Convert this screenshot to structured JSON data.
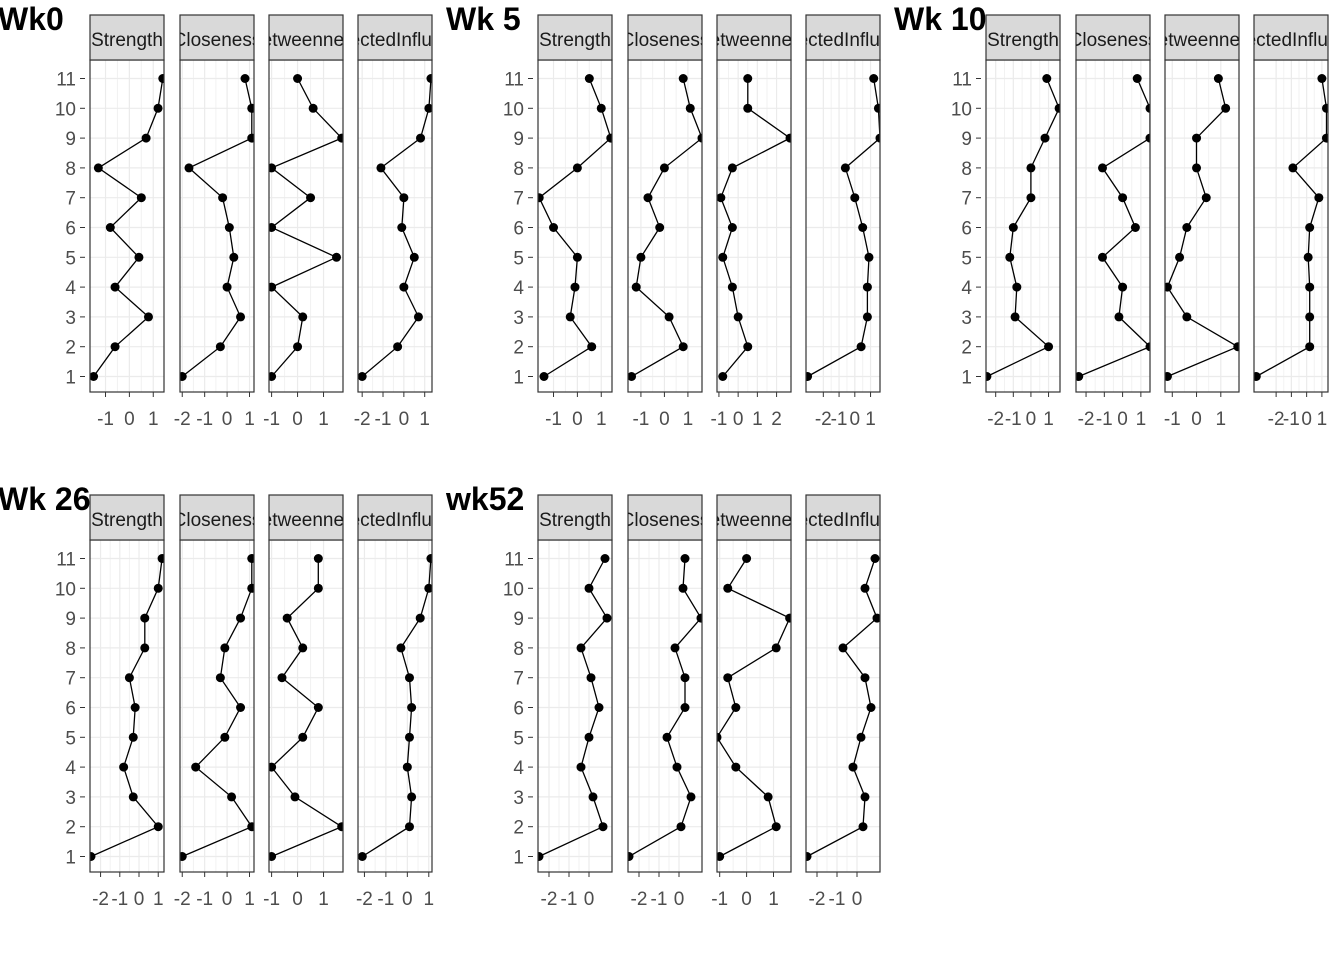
{
  "chart_data": [
    {
      "type": "line",
      "title": "Wk0",
      "y_categories": [
        "1",
        "2",
        "3",
        "4",
        "5",
        "6",
        "7",
        "8",
        "9",
        "10",
        "11"
      ],
      "panels": [
        {
          "strip": "Strength",
          "xlim": [
            -1.65,
            1.45
          ],
          "x_ticks": [
            -1,
            0,
            1
          ],
          "x_tick_labels": [
            "-1",
            "0",
            "1"
          ],
          "x": [
            -1.5,
            -0.6,
            0.8,
            -0.6,
            0.4,
            -0.8,
            0.5,
            -1.3,
            0.7,
            1.2,
            1.4
          ]
        },
        {
          "strip": "Closeness",
          "xlim": [
            -2.1,
            1.2
          ],
          "x_ticks": [
            -2,
            -1,
            0,
            1
          ],
          "x_tick_labels": [
            "-2",
            "-1",
            "0",
            "1"
          ],
          "x": [
            -2.0,
            -0.3,
            0.6,
            0.0,
            0.3,
            0.1,
            -0.2,
            -1.7,
            1.1,
            1.1,
            0.8
          ]
        },
        {
          "strip": "Betweenness",
          "xlim": [
            -1.1,
            1.75
          ],
          "x_ticks": [
            -1,
            0,
            1
          ],
          "x_tick_labels": [
            "-1",
            "0",
            "1"
          ],
          "x": [
            -1.0,
            0.0,
            0.2,
            -1.0,
            1.5,
            -1.0,
            0.5,
            -1.0,
            1.7,
            0.6,
            0.0
          ]
        },
        {
          "strip": "ExpectedInfluence",
          "xlim": [
            -2.2,
            1.35
          ],
          "x_ticks": [
            -2,
            -1,
            0,
            1
          ],
          "x_tick_labels": [
            "-2",
            "-1",
            "0",
            "1"
          ],
          "x": [
            -2.0,
            -0.3,
            0.7,
            0.0,
            0.5,
            -0.1,
            0.0,
            -1.1,
            0.8,
            1.2,
            1.3
          ]
        }
      ]
    },
    {
      "type": "line",
      "title": "Wk 5",
      "y_categories": [
        "1",
        "2",
        "3",
        "4",
        "5",
        "6",
        "7",
        "8",
        "9",
        "10",
        "11"
      ],
      "panels": [
        {
          "strip": "Strength",
          "xlim": [
            -1.65,
            1.45
          ],
          "x_ticks": [
            -1,
            0,
            1
          ],
          "x_tick_labels": [
            "-1",
            "0",
            "1"
          ],
          "x": [
            -1.4,
            0.6,
            -0.3,
            -0.1,
            0.0,
            -1.0,
            -1.6,
            0.0,
            1.4,
            1.0,
            0.5
          ]
        },
        {
          "strip": "Closeness",
          "xlim": [
            -1.55,
            1.6
          ],
          "x_ticks": [
            -1,
            0,
            1
          ],
          "x_tick_labels": [
            "-1",
            "0",
            "1"
          ],
          "x": [
            -1.4,
            0.8,
            0.2,
            -1.2,
            -1.0,
            -0.2,
            -0.7,
            0.0,
            1.6,
            1.1,
            0.8
          ]
        },
        {
          "strip": "Betweenness",
          "xlim": [
            -1.1,
            2.75
          ],
          "x_ticks": [
            -1,
            0,
            1,
            2
          ],
          "x_tick_labels": [
            "-1",
            "0",
            "1",
            "2"
          ],
          "x": [
            -0.8,
            0.5,
            0.0,
            -0.3,
            -0.8,
            -0.3,
            -0.9,
            -0.3,
            2.7,
            0.5,
            0.5
          ]
        },
        {
          "strip": "ExpectedInfluence",
          "xlim": [
            -3.1,
            1.6
          ],
          "x_ticks": [
            -2,
            -1,
            0,
            1
          ],
          "x_tick_labels": [
            "-2",
            "-1",
            "0",
            "1"
          ],
          "x": [
            -3.0,
            0.4,
            0.8,
            0.8,
            0.9,
            0.5,
            0.0,
            -0.6,
            1.6,
            1.5,
            1.2
          ]
        }
      ]
    },
    {
      "type": "line",
      "title": "Wk 10",
      "y_categories": [
        "1",
        "2",
        "3",
        "4",
        "5",
        "6",
        "7",
        "8",
        "9",
        "10",
        "11"
      ],
      "panels": [
        {
          "strip": "Strength",
          "xlim": [
            -2.55,
            1.65
          ],
          "x_ticks": [
            -2,
            -1,
            0,
            1
          ],
          "x_tick_labels": [
            "-2",
            "-1",
            "0",
            "1"
          ],
          "x": [
            -2.5,
            1.0,
            -0.9,
            -0.8,
            -1.2,
            -1.0,
            0.0,
            0.0,
            0.8,
            1.6,
            0.9
          ]
        },
        {
          "strip": "Closeness",
          "xlim": [
            -2.55,
            1.5
          ],
          "x_ticks": [
            -2,
            -1,
            0,
            1
          ],
          "x_tick_labels": [
            "-2",
            "-1",
            "0",
            "1"
          ],
          "x": [
            -2.4,
            1.5,
            -0.2,
            0.0,
            -1.1,
            0.7,
            0.0,
            -1.1,
            1.5,
            1.5,
            0.8
          ]
        },
        {
          "strip": "Betweenness",
          "xlim": [
            -1.3,
            1.75
          ],
          "x_ticks": [
            -1,
            0,
            1
          ],
          "x_tick_labels": [
            "-1",
            "0",
            "1"
          ],
          "x": [
            -1.2,
            1.7,
            -0.4,
            -1.2,
            -0.7,
            -0.4,
            0.4,
            0.0,
            0.0,
            1.2,
            0.9
          ]
        },
        {
          "strip": "ExpectedInfluence",
          "xlim": [
            -3.45,
            1.4
          ],
          "x_ticks": [
            -2,
            -1,
            0,
            1
          ],
          "x_tick_labels": [
            "-2",
            "-1",
            "0",
            "1"
          ],
          "x": [
            -3.3,
            0.2,
            0.2,
            0.2,
            0.1,
            0.2,
            0.8,
            -0.9,
            1.3,
            1.3,
            1.0
          ]
        }
      ]
    },
    {
      "type": "line",
      "title": "Wk 26",
      "y_categories": [
        "1",
        "2",
        "3",
        "4",
        "5",
        "6",
        "7",
        "8",
        "9",
        "10",
        "11"
      ],
      "panels": [
        {
          "strip": "Strength",
          "xlim": [
            -2.55,
            1.3
          ],
          "x_ticks": [
            -2,
            -1,
            0,
            1
          ],
          "x_tick_labels": [
            "-2",
            "-1",
            "0",
            "1"
          ],
          "x": [
            -2.5,
            1.0,
            -0.3,
            -0.8,
            -0.3,
            -0.2,
            -0.5,
            0.3,
            0.3,
            1.0,
            1.2
          ]
        },
        {
          "strip": "Closeness",
          "xlim": [
            -2.1,
            1.2
          ],
          "x_ticks": [
            -2,
            -1,
            0,
            1
          ],
          "x_tick_labels": [
            "-2",
            "-1",
            "0",
            "1"
          ],
          "x": [
            -2.0,
            1.1,
            0.2,
            -1.4,
            -0.1,
            0.6,
            -0.3,
            -0.1,
            0.6,
            1.1,
            1.1
          ]
        },
        {
          "strip": "Betweenness",
          "xlim": [
            -1.1,
            1.75
          ],
          "x_ticks": [
            -1,
            0,
            1
          ],
          "x_tick_labels": [
            "-1",
            "0",
            "1"
          ],
          "x": [
            -1.0,
            1.7,
            -0.1,
            -1.0,
            0.2,
            0.8,
            -0.6,
            0.2,
            -0.4,
            0.8,
            0.8
          ]
        },
        {
          "strip": "ExpectedInfluence",
          "xlim": [
            -2.3,
            1.15
          ],
          "x_ticks": [
            -2,
            -1,
            0,
            1
          ],
          "x_tick_labels": [
            "-2",
            "-1",
            "0",
            "1"
          ],
          "x": [
            -2.1,
            0.1,
            0.2,
            0.0,
            0.1,
            0.2,
            0.1,
            -0.3,
            0.6,
            1.0,
            1.1
          ]
        }
      ]
    },
    {
      "type": "line",
      "title": "wk52",
      "y_categories": [
        "1",
        "2",
        "3",
        "4",
        "5",
        "6",
        "7",
        "8",
        "9",
        "10",
        "11"
      ],
      "panels": [
        {
          "strip": "Strength",
          "xlim": [
            -2.55,
            1.15
          ],
          "x_ticks": [
            -2,
            -1,
            0
          ],
          "x_tick_labels": [
            "-2",
            "-1",
            "0"
          ],
          "x": [
            -2.5,
            0.7,
            0.2,
            -0.4,
            0.0,
            0.5,
            0.1,
            -0.4,
            0.9,
            0.0,
            0.8
          ]
        },
        {
          "strip": "Closeness",
          "xlim": [
            -2.55,
            1.15
          ],
          "x_ticks": [
            -2,
            -1,
            0
          ],
          "x_tick_labels": [
            "-2",
            "-1",
            "0"
          ],
          "x": [
            -2.5,
            0.1,
            0.6,
            -0.1,
            -0.6,
            0.3,
            0.3,
            -0.2,
            1.1,
            0.2,
            0.3
          ]
        },
        {
          "strip": "Betweenness",
          "xlim": [
            -1.1,
            1.65
          ],
          "x_ticks": [
            -1,
            0,
            1
          ],
          "x_tick_labels": [
            "-1",
            "0",
            "1"
          ],
          "x": [
            -1.0,
            1.1,
            0.8,
            -0.4,
            -1.1,
            -0.4,
            -0.7,
            1.1,
            1.6,
            -0.7,
            0.0
          ]
        },
        {
          "strip": "ExpectedInfluence",
          "xlim": [
            -2.55,
            1.15
          ],
          "x_ticks": [
            -2,
            -1,
            0
          ],
          "x_tick_labels": [
            "-2",
            "-1",
            "0"
          ],
          "x": [
            -2.5,
            0.3,
            0.4,
            -0.2,
            0.2,
            0.7,
            0.4,
            -0.7,
            1.0,
            0.4,
            0.9
          ]
        }
      ]
    }
  ]
}
